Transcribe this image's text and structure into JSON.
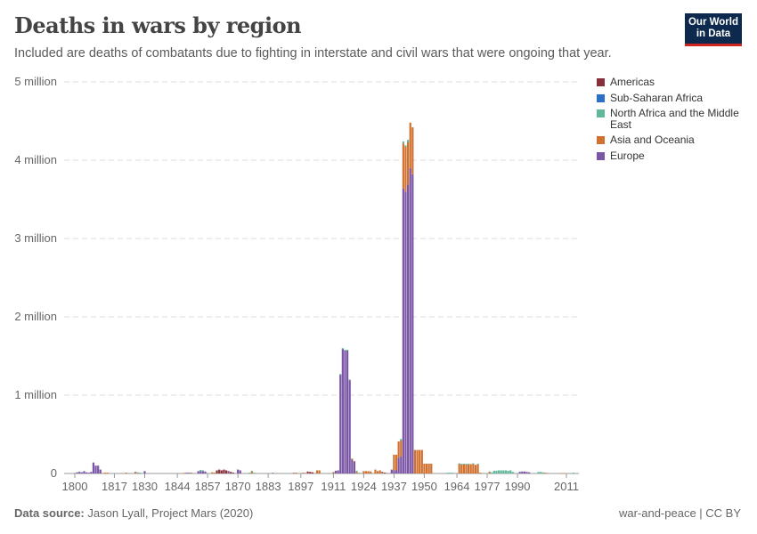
{
  "title": "Deaths in wars by region",
  "subtitle": "Included are deaths of combatants due to fighting in interstate and civil wars that were ongoing that year.",
  "logo": {
    "line1": "Our World",
    "line2": "in Data"
  },
  "footer": {
    "source_label": "Data source:",
    "source": "Jason Lyall, Project Mars (2020)",
    "license": "war-and-peace | CC BY"
  },
  "chart_data": {
    "type": "bar",
    "stacked": true,
    "title": "Deaths in wars by region",
    "xlabel": "",
    "ylabel": "",
    "ylim": [
      0,
      5000000
    ],
    "xlim": [
      1800,
      2016
    ],
    "y_ticks": [
      {
        "v": 0,
        "label": "0"
      },
      {
        "v": 1000000,
        "label": "1 million"
      },
      {
        "v": 2000000,
        "label": "2 million"
      },
      {
        "v": 3000000,
        "label": "3 million"
      },
      {
        "v": 4000000,
        "label": "4 million"
      },
      {
        "v": 5000000,
        "label": "5 million"
      }
    ],
    "x_ticks": [
      1800,
      1817,
      1830,
      1844,
      1857,
      1870,
      1883,
      1897,
      1911,
      1924,
      1937,
      1950,
      1964,
      1977,
      1990,
      2011
    ],
    "grid": "horizontal dashed",
    "legend": "right",
    "series": [
      {
        "name": "Americas",
        "color": "#883039"
      },
      {
        "name": "Sub-Saharan Africa",
        "color": "#2c6fc7"
      },
      {
        "name": "North Africa and the Middle East",
        "color": "#5fb89c"
      },
      {
        "name": "Asia and Oceania",
        "color": "#d0712f"
      },
      {
        "name": "Europe",
        "color": "#7b56a6"
      }
    ],
    "value_unit": "thousand deaths",
    "rows_columns": [
      "year",
      "Americas",
      "Sub-Saharan Africa",
      "North Africa and the Middle East",
      "Asia and Oceania",
      "Europe"
    ],
    "rows": [
      [
        1800,
        0,
        0,
        0,
        0,
        5
      ],
      [
        1801,
        0,
        0,
        0,
        0,
        15
      ],
      [
        1802,
        0,
        0,
        5,
        0,
        20
      ],
      [
        1803,
        0,
        0,
        0,
        0,
        15
      ],
      [
        1804,
        0,
        0,
        0,
        0,
        30
      ],
      [
        1805,
        0,
        0,
        0,
        0,
        15
      ],
      [
        1806,
        0,
        0,
        0,
        0,
        10
      ],
      [
        1807,
        0,
        0,
        0,
        0,
        20
      ],
      [
        1808,
        0,
        0,
        0,
        0,
        140
      ],
      [
        1809,
        0,
        0,
        0,
        0,
        100
      ],
      [
        1810,
        0,
        0,
        0,
        0,
        100
      ],
      [
        1811,
        0,
        0,
        0,
        0,
        50
      ],
      [
        1812,
        0,
        0,
        0,
        5,
        0
      ],
      [
        1813,
        0,
        0,
        0,
        10,
        0
      ],
      [
        1814,
        0,
        0,
        0,
        10,
        0
      ],
      [
        1822,
        0,
        0,
        0,
        10,
        0
      ],
      [
        1826,
        5,
        0,
        0,
        15,
        0
      ],
      [
        1827,
        0,
        0,
        15,
        0,
        0
      ],
      [
        1828,
        0,
        0,
        10,
        0,
        0
      ],
      [
        1830,
        0,
        0,
        0,
        0,
        30
      ],
      [
        1847,
        0,
        0,
        0,
        8,
        0
      ],
      [
        1848,
        0,
        0,
        0,
        0,
        10
      ],
      [
        1849,
        0,
        0,
        0,
        0,
        10
      ],
      [
        1850,
        0,
        0,
        0,
        10,
        0
      ],
      [
        1853,
        0,
        0,
        0,
        0,
        30
      ],
      [
        1854,
        0,
        0,
        15,
        0,
        30
      ],
      [
        1855,
        0,
        0,
        10,
        0,
        30
      ],
      [
        1856,
        0,
        0,
        0,
        0,
        25
      ],
      [
        1859,
        0,
        0,
        0,
        15,
        0
      ],
      [
        1860,
        0,
        0,
        0,
        10,
        0
      ],
      [
        1861,
        40,
        0,
        0,
        0,
        0
      ],
      [
        1862,
        50,
        0,
        0,
        0,
        0
      ],
      [
        1863,
        40,
        0,
        0,
        0,
        0
      ],
      [
        1864,
        50,
        0,
        0,
        0,
        0
      ],
      [
        1865,
        40,
        0,
        0,
        0,
        0
      ],
      [
        1866,
        10,
        0,
        0,
        0,
        20
      ],
      [
        1867,
        20,
        0,
        0,
        0,
        0
      ],
      [
        1868,
        10,
        0,
        0,
        0,
        0
      ],
      [
        1870,
        0,
        0,
        0,
        0,
        50
      ],
      [
        1871,
        0,
        0,
        0,
        0,
        40
      ],
      [
        1875,
        0,
        0,
        10,
        0,
        0
      ],
      [
        1876,
        0,
        0,
        10,
        25,
        0
      ],
      [
        1877,
        0,
        0,
        10,
        0,
        0
      ],
      [
        1879,
        0,
        0,
        5,
        0,
        0
      ],
      [
        1885,
        0,
        0,
        0,
        0,
        8
      ],
      [
        1891,
        0,
        0,
        5,
        0,
        0
      ],
      [
        1894,
        0,
        0,
        0,
        10,
        0
      ],
      [
        1895,
        0,
        0,
        0,
        10,
        0
      ],
      [
        1898,
        0,
        0,
        0,
        10,
        0
      ],
      [
        1899,
        0,
        0,
        0,
        0,
        5
      ],
      [
        1900,
        20,
        0,
        0,
        5,
        0
      ],
      [
        1901,
        20,
        0,
        0,
        0,
        0
      ],
      [
        1902,
        15,
        0,
        0,
        0,
        0
      ],
      [
        1904,
        0,
        0,
        0,
        40,
        0
      ],
      [
        1905,
        0,
        0,
        0,
        40,
        0
      ],
      [
        1911,
        0,
        0,
        5,
        15,
        0
      ],
      [
        1912,
        0,
        0,
        0,
        0,
        35
      ],
      [
        1913,
        0,
        0,
        0,
        0,
        40
      ],
      [
        1914,
        0,
        0,
        10,
        0,
        1260
      ],
      [
        1915,
        0,
        0,
        10,
        0,
        1590
      ],
      [
        1916,
        0,
        0,
        10,
        0,
        1570
      ],
      [
        1917,
        0,
        0,
        10,
        0,
        1570
      ],
      [
        1918,
        0,
        0,
        10,
        0,
        1190
      ],
      [
        1919,
        0,
        0,
        0,
        10,
        180
      ],
      [
        1920,
        0,
        0,
        0,
        10,
        150
      ],
      [
        1921,
        0,
        0,
        15,
        20,
        0
      ],
      [
        1922,
        0,
        0,
        10,
        0,
        0
      ],
      [
        1924,
        0,
        0,
        0,
        30,
        0
      ],
      [
        1925,
        0,
        0,
        0,
        30,
        0
      ],
      [
        1926,
        0,
        0,
        0,
        30,
        0
      ],
      [
        1927,
        0,
        0,
        0,
        25,
        0
      ],
      [
        1929,
        0,
        0,
        0,
        50,
        0
      ],
      [
        1930,
        0,
        0,
        0,
        30,
        0
      ],
      [
        1931,
        0,
        0,
        0,
        40,
        0
      ],
      [
        1932,
        10,
        0,
        0,
        10,
        0
      ],
      [
        1933,
        10,
        0,
        0,
        0,
        0
      ],
      [
        1934,
        0,
        0,
        0,
        0,
        5
      ],
      [
        1936,
        0,
        0,
        0,
        0,
        50
      ],
      [
        1937,
        0,
        0,
        0,
        200,
        40
      ],
      [
        1938,
        0,
        0,
        0,
        200,
        40
      ],
      [
        1939,
        0,
        0,
        0,
        210,
        200
      ],
      [
        1940,
        0,
        0,
        20,
        200,
        220
      ],
      [
        1941,
        0,
        0,
        30,
        570,
        3640
      ],
      [
        1942,
        0,
        0,
        20,
        570,
        3600
      ],
      [
        1943,
        0,
        0,
        30,
        540,
        3690
      ],
      [
        1944,
        0,
        0,
        0,
        580,
        3900
      ],
      [
        1945,
        0,
        0,
        0,
        600,
        3820
      ],
      [
        1946,
        0,
        0,
        0,
        300,
        0
      ],
      [
        1947,
        0,
        0,
        0,
        300,
        0
      ],
      [
        1948,
        0,
        0,
        0,
        300,
        0
      ],
      [
        1949,
        0,
        0,
        0,
        300,
        0
      ],
      [
        1950,
        0,
        0,
        0,
        125,
        0
      ],
      [
        1951,
        0,
        0,
        0,
        125,
        0
      ],
      [
        1952,
        0,
        0,
        0,
        125,
        0
      ],
      [
        1953,
        0,
        0,
        0,
        125,
        0
      ],
      [
        1960,
        0,
        0,
        10,
        0,
        0
      ],
      [
        1961,
        0,
        0,
        10,
        0,
        0
      ],
      [
        1962,
        0,
        0,
        10,
        0,
        0
      ],
      [
        1965,
        0,
        0,
        10,
        120,
        0
      ],
      [
        1966,
        0,
        0,
        10,
        115,
        0
      ],
      [
        1967,
        0,
        0,
        10,
        115,
        0
      ],
      [
        1968,
        0,
        0,
        10,
        115,
        0
      ],
      [
        1969,
        0,
        0,
        10,
        115,
        0
      ],
      [
        1970,
        0,
        0,
        0,
        120,
        0
      ],
      [
        1971,
        0,
        0,
        10,
        120,
        0
      ],
      [
        1972,
        0,
        0,
        0,
        110,
        0
      ],
      [
        1973,
        0,
        0,
        10,
        115,
        0
      ],
      [
        1974,
        0,
        0,
        0,
        10,
        0
      ],
      [
        1975,
        0,
        0,
        0,
        5,
        0
      ],
      [
        1976,
        0,
        0,
        5,
        0,
        0
      ],
      [
        1977,
        0,
        0,
        5,
        0,
        0
      ],
      [
        1978,
        0,
        0,
        5,
        20,
        0
      ],
      [
        1979,
        0,
        0,
        15,
        0,
        0
      ],
      [
        1980,
        0,
        0,
        35,
        0,
        0
      ],
      [
        1981,
        0,
        0,
        35,
        0,
        0
      ],
      [
        1982,
        0,
        0,
        40,
        0,
        0
      ],
      [
        1983,
        0,
        0,
        40,
        0,
        0
      ],
      [
        1984,
        0,
        0,
        40,
        0,
        0
      ],
      [
        1985,
        0,
        0,
        40,
        0,
        0
      ],
      [
        1986,
        0,
        0,
        35,
        0,
        0
      ],
      [
        1987,
        0,
        0,
        40,
        0,
        0
      ],
      [
        1988,
        0,
        0,
        20,
        0,
        0
      ],
      [
        1991,
        0,
        0,
        5,
        0,
        20
      ],
      [
        1992,
        0,
        0,
        0,
        0,
        25
      ],
      [
        1993,
        0,
        0,
        0,
        0,
        25
      ],
      [
        1994,
        0,
        0,
        0,
        0,
        20
      ],
      [
        1995,
        0,
        0,
        0,
        0,
        15
      ],
      [
        1996,
        0,
        0,
        5,
        0,
        0
      ],
      [
        1999,
        0,
        0,
        20,
        0,
        0
      ],
      [
        2000,
        0,
        0,
        20,
        0,
        0
      ],
      [
        2001,
        0,
        0,
        15,
        0,
        0
      ],
      [
        2002,
        0,
        0,
        0,
        10,
        0
      ],
      [
        2003,
        0,
        0,
        0,
        5,
        0
      ],
      [
        2009,
        0,
        0,
        0,
        5,
        0
      ],
      [
        2010,
        0,
        0,
        0,
        5,
        0
      ],
      [
        2014,
        0,
        0,
        10,
        0,
        0
      ]
    ]
  }
}
